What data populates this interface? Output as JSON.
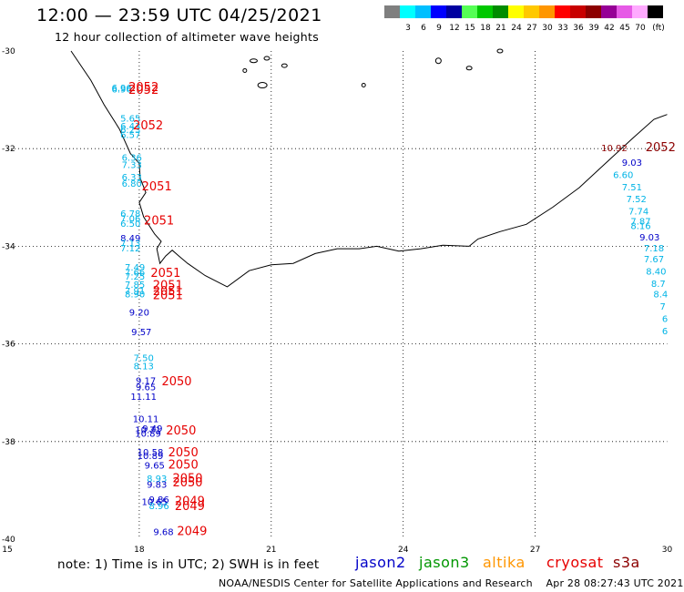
{
  "header": {
    "title": "12:00 — 23:59 UTC 04/25/2021",
    "subtitle": "12 hour collection of altimeter wave heights"
  },
  "scale": {
    "unit": "(ft)",
    "bins": [
      {
        "color": "#7f7f7f",
        "label": ""
      },
      {
        "color": "#00ffff",
        "label": "3"
      },
      {
        "color": "#00bfff",
        "label": "6"
      },
      {
        "color": "#0000ff",
        "label": "9"
      },
      {
        "color": "#0000a0",
        "label": "12"
      },
      {
        "color": "#55ff55",
        "label": "15"
      },
      {
        "color": "#00c800",
        "label": "18"
      },
      {
        "color": "#008c00",
        "label": "21"
      },
      {
        "color": "#ffff00",
        "label": "24"
      },
      {
        "color": "#ffc800",
        "label": "27"
      },
      {
        "color": "#ff9600",
        "label": "30"
      },
      {
        "color": "#ff0000",
        "label": "33"
      },
      {
        "color": "#c80000",
        "label": "36"
      },
      {
        "color": "#8c0000",
        "label": "39"
      },
      {
        "color": "#960096",
        "label": "42"
      },
      {
        "color": "#e65ae6",
        "label": "45"
      },
      {
        "color": "#ffaaff",
        "label": "70"
      },
      {
        "color": "#000000",
        "label": ""
      }
    ]
  },
  "map": {
    "lon_labels": [
      "15",
      "18",
      "21",
      "24",
      "27",
      "30"
    ],
    "lat_labels": [
      "-30",
      "-32",
      "-34",
      "-36",
      "-38",
      "-40"
    ]
  },
  "colors": {
    "jason2": "#0000c8",
    "jason3": "#009600",
    "altika": "#ff9600",
    "cryosat": "#e60000",
    "s3a": "#8c0000",
    "light": "#00b4e6",
    "medium": "#0000c8",
    "red": "#e60000",
    "darkred": "#8c0000"
  },
  "points": [
    {
      "v": "6.96",
      "lon": 17.6,
      "lat": -30.82,
      "c": "light"
    },
    {
      "v": "6.96",
      "lon": 17.6,
      "lat": -30.85,
      "c": "light"
    },
    {
      "v": "5.65",
      "lon": 17.8,
      "lat": -31.45,
      "c": "light"
    },
    {
      "v": "6.43",
      "lon": 17.8,
      "lat": -31.6,
      "c": "light"
    },
    {
      "v": "6.23",
      "lon": 17.8,
      "lat": -31.68,
      "c": "light"
    },
    {
      "v": "6.57",
      "lon": 17.8,
      "lat": -31.78,
      "c": "light"
    },
    {
      "v": "6.36",
      "lon": 17.83,
      "lat": -32.25,
      "c": "light"
    },
    {
      "v": "7.33",
      "lon": 17.83,
      "lat": -32.4,
      "c": "light"
    },
    {
      "v": "6.33",
      "lon": 17.83,
      "lat": -32.65,
      "c": "light"
    },
    {
      "v": "6.80",
      "lon": 17.83,
      "lat": -32.78,
      "c": "light"
    },
    {
      "v": "6.78",
      "lon": 17.8,
      "lat": -33.4,
      "c": "light"
    },
    {
      "v": "7.06",
      "lon": 17.8,
      "lat": -33.5,
      "c": "light"
    },
    {
      "v": "6.50",
      "lon": 17.8,
      "lat": -33.6,
      "c": "light"
    },
    {
      "v": "8.49",
      "lon": 17.8,
      "lat": -33.9,
      "c": "medium"
    },
    {
      "v": "7.13",
      "lon": 17.8,
      "lat": -34.0,
      "c": "light"
    },
    {
      "v": "7.12",
      "lon": 17.8,
      "lat": -34.1,
      "c": "light"
    },
    {
      "v": "7.49",
      "lon": 17.9,
      "lat": -34.5,
      "c": "light"
    },
    {
      "v": "7.66",
      "lon": 17.9,
      "lat": -34.6,
      "c": "light"
    },
    {
      "v": "7.25",
      "lon": 17.9,
      "lat": -34.68,
      "c": "light"
    },
    {
      "v": "7.85",
      "lon": 17.9,
      "lat": -34.85,
      "c": "light"
    },
    {
      "v": "7.91",
      "lon": 17.9,
      "lat": -34.98,
      "c": "light"
    },
    {
      "v": "8.90",
      "lon": 17.9,
      "lat": -35.05,
      "c": "light"
    },
    {
      "v": "9.20",
      "lon": 18.0,
      "lat": -35.42,
      "c": "medium"
    },
    {
      "v": "9.57",
      "lon": 18.05,
      "lat": -35.82,
      "c": "medium"
    },
    {
      "v": "7.50",
      "lon": 18.1,
      "lat": -36.35,
      "c": "light"
    },
    {
      "v": "8.13",
      "lon": 18.1,
      "lat": -36.52,
      "c": "light"
    },
    {
      "v": "9.17",
      "lon": 18.15,
      "lat": -36.82,
      "c": "medium"
    },
    {
      "v": "9.65",
      "lon": 18.15,
      "lat": -36.95,
      "c": "medium"
    },
    {
      "v": "11.11",
      "lon": 18.1,
      "lat": -37.15,
      "c": "medium"
    },
    {
      "v": "10.11",
      "lon": 18.15,
      "lat": -37.6,
      "c": "medium"
    },
    {
      "v": "9.49",
      "lon": 18.3,
      "lat": -37.8,
      "c": "medium"
    },
    {
      "v": "10.71",
      "lon": 18.2,
      "lat": -37.83,
      "c": "medium"
    },
    {
      "v": "10.89",
      "lon": 18.2,
      "lat": -37.9,
      "c": "medium"
    },
    {
      "v": "10.58",
      "lon": 18.25,
      "lat": -38.28,
      "c": "medium"
    },
    {
      "v": "10.89",
      "lon": 18.25,
      "lat": -38.36,
      "c": "medium"
    },
    {
      "v": "9.65",
      "lon": 18.35,
      "lat": -38.55,
      "c": "medium"
    },
    {
      "v": "8.93",
      "lon": 18.4,
      "lat": -38.82,
      "c": "light"
    },
    {
      "v": "9.83",
      "lon": 18.4,
      "lat": -38.95,
      "c": "medium"
    },
    {
      "v": "9.86",
      "lon": 18.45,
      "lat": -39.25,
      "c": "medium"
    },
    {
      "v": "10.65",
      "lon": 18.35,
      "lat": -39.3,
      "c": "medium"
    },
    {
      "v": "8.96",
      "lon": 18.45,
      "lat": -39.38,
      "c": "light"
    },
    {
      "v": "9.68",
      "lon": 18.55,
      "lat": -39.92,
      "c": "medium"
    },
    {
      "v": "10.92",
      "lon": 28.8,
      "lat": -32.05,
      "c": "darkred"
    },
    {
      "v": "9.03",
      "lon": 29.2,
      "lat": -32.35,
      "c": "medium"
    },
    {
      "v": "6.60",
      "lon": 29.0,
      "lat": -32.6,
      "c": "light"
    },
    {
      "v": "7.51",
      "lon": 29.2,
      "lat": -32.85,
      "c": "light"
    },
    {
      "v": "7.52",
      "lon": 29.3,
      "lat": -33.1,
      "c": "light"
    },
    {
      "v": "7.74",
      "lon": 29.35,
      "lat": -33.35,
      "c": "light"
    },
    {
      "v": "7.87",
      "lon": 29.4,
      "lat": -33.55,
      "c": "light"
    },
    {
      "v": "8.16",
      "lon": 29.4,
      "lat": -33.65,
      "c": "light"
    },
    {
      "v": "9.03",
      "lon": 29.6,
      "lat": -33.88,
      "c": "medium"
    },
    {
      "v": "7.18",
      "lon": 29.7,
      "lat": -34.1,
      "c": "light"
    },
    {
      "v": "7.67",
      "lon": 29.7,
      "lat": -34.33,
      "c": "light"
    },
    {
      "v": "8.40",
      "lon": 29.75,
      "lat": -34.58,
      "c": "light"
    },
    {
      "v": "8.7",
      "lon": 29.8,
      "lat": -34.83,
      "c": "light"
    },
    {
      "v": "8.4",
      "lon": 29.85,
      "lat": -35.05,
      "c": "light"
    },
    {
      "v": "7",
      "lon": 29.9,
      "lat": -35.3,
      "c": "light"
    },
    {
      "v": "6",
      "lon": 29.95,
      "lat": -35.55,
      "c": "light"
    },
    {
      "v": "6",
      "lon": 29.95,
      "lat": -35.8,
      "c": "light"
    }
  ],
  "passes": [
    {
      "v": "2052",
      "lon": 18.1,
      "lat": -30.82,
      "c": "red"
    },
    {
      "v": "2052",
      "lon": 18.1,
      "lat": -30.88,
      "c": "red"
    },
    {
      "v": "2052",
      "lon": 18.2,
      "lat": -31.6,
      "c": "red"
    },
    {
      "v": "2051",
      "lon": 18.4,
      "lat": -32.85,
      "c": "red"
    },
    {
      "v": "2051",
      "lon": 18.45,
      "lat": -33.55,
      "c": "red"
    },
    {
      "v": "2051",
      "lon": 18.6,
      "lat": -34.63,
      "c": "red"
    },
    {
      "v": "2051",
      "lon": 18.65,
      "lat": -34.88,
      "c": "red"
    },
    {
      "v": "2051",
      "lon": 18.65,
      "lat": -35.0,
      "c": "red"
    },
    {
      "v": "2051",
      "lon": 18.65,
      "lat": -35.08,
      "c": "red"
    },
    {
      "v": "2050",
      "lon": 18.85,
      "lat": -36.85,
      "c": "red"
    },
    {
      "v": "2050",
      "lon": 18.95,
      "lat": -37.85,
      "c": "red"
    },
    {
      "v": "2050",
      "lon": 19.0,
      "lat": -38.3,
      "c": "red"
    },
    {
      "v": "2050",
      "lon": 19.0,
      "lat": -38.55,
      "c": "red"
    },
    {
      "v": "2050",
      "lon": 19.1,
      "lat": -38.83,
      "c": "red"
    },
    {
      "v": "2050",
      "lon": 19.1,
      "lat": -38.92,
      "c": "red"
    },
    {
      "v": "2049",
      "lon": 19.15,
      "lat": -39.3,
      "c": "red"
    },
    {
      "v": "2049",
      "lon": 19.15,
      "lat": -39.4,
      "c": "red"
    },
    {
      "v": "2049",
      "lon": 19.2,
      "lat": -39.92,
      "c": "red"
    },
    {
      "v": "2052",
      "lon": 29.85,
      "lat": -32.05,
      "c": "darkred"
    }
  ],
  "note": "note: 1) Time is in UTC; 2) SWH is in feet",
  "legend": [
    "jason2",
    "jason3",
    "altika",
    "cryosat",
    "s3a"
  ],
  "footer": {
    "source": "NOAA/NESDIS Center for Satellite Applications and Research",
    "timestamp": "Apr 28 08:27:43 UTC 2021"
  }
}
